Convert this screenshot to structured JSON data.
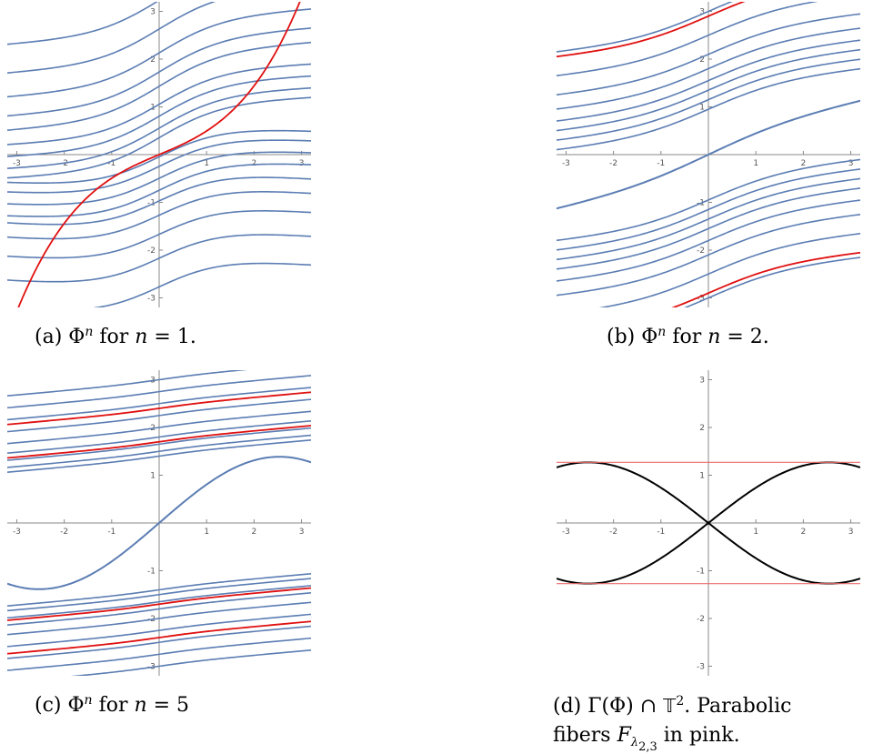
{
  "figure": {
    "panels": [
      {
        "id": "a",
        "caption_label": "(a)",
        "caption_text": "Φ",
        "caption_sup": "n",
        "caption_after": " for ",
        "caption_var": "n",
        "caption_value": " = 1."
      },
      {
        "id": "b",
        "caption_label": "(b)",
        "caption_text": "Φ",
        "caption_sup": "n",
        "caption_after": " for ",
        "caption_var": "n",
        "caption_value": " = 2."
      },
      {
        "id": "c",
        "caption_label": "(c)",
        "caption_text": "Φ",
        "caption_sup": "n",
        "caption_after": " for ",
        "caption_var": "n",
        "caption_value": " = 5"
      },
      {
        "id": "d",
        "caption_label": "(d)",
        "caption_line1_a": "Γ(Φ) ∩ ",
        "caption_line1_T": "𝕋",
        "caption_line1_sup": "2",
        "caption_line1_b": ".  Parabolic",
        "caption_line2_a": "fibers ",
        "caption_line2_F": "F",
        "caption_line2_sub": "λ",
        "caption_line2_subsub": "2,3",
        "caption_line2_b": " in pink."
      }
    ]
  },
  "chart_data": [
    {
      "type": "line",
      "panel": "a",
      "xlim": [
        -3.2,
        3.2
      ],
      "ylim": [
        -3.2,
        3.2
      ],
      "x_ticks": [
        -3,
        -2,
        -1,
        1,
        2,
        3
      ],
      "y_ticks": [
        -3,
        -2,
        -1,
        1,
        2,
        3
      ],
      "tick_labels_x": [
        "-3",
        "-2",
        "-1",
        "1",
        "2",
        "3"
      ],
      "tick_labels_y": [
        "-3",
        "-2",
        "-1",
        "1",
        "2",
        "3"
      ],
      "colors": {
        "family": "#5b7db3",
        "highlight": "#e01010"
      },
      "family_offsets": [
        -3.0,
        -2.4,
        -1.9,
        -1.5,
        -1.2,
        -0.9,
        -0.65,
        -0.4,
        -0.2,
        0.2,
        0.4,
        0.65,
        0.9,
        1.2,
        1.5,
        1.9,
        2.4,
        3.0
      ],
      "highlight_offsets": [
        0
      ]
    },
    {
      "type": "line",
      "panel": "b",
      "xlim": [
        -3.2,
        3.2
      ],
      "ylim": [
        -3.2,
        3.2
      ],
      "x_ticks": [
        -3,
        -2,
        -1,
        1,
        2,
        3
      ],
      "y_ticks": [
        -3,
        -2,
        -1,
        1,
        2,
        3
      ],
      "tick_labels_x": [
        "-3",
        "-2",
        "-1",
        "1",
        "2",
        "3"
      ],
      "tick_labels_y": [
        "-3",
        "-2",
        "-1",
        "1",
        "2",
        "3"
      ],
      "colors": {
        "family": "#5b7db3",
        "highlight": "#e01010"
      },
      "family_offsets": [
        -3.0,
        -2.5,
        -2.1,
        -1.8,
        -1.55,
        -1.35,
        -1.15,
        -0.95,
        0.95,
        1.15,
        1.35,
        1.55,
        1.8,
        2.1,
        2.5,
        3.0
      ],
      "highlight_offsets": [
        -2.9,
        2.9
      ]
    },
    {
      "type": "line",
      "panel": "c",
      "xlim": [
        -3.2,
        3.2
      ],
      "ylim": [
        -3.2,
        3.2
      ],
      "x_ticks": [
        -3,
        -2,
        -1,
        1,
        2,
        3
      ],
      "y_ticks": [
        -3,
        -2,
        -1,
        1,
        2,
        3
      ],
      "tick_labels_x": [
        "-3",
        "-2",
        "-1",
        "1",
        "2",
        "3"
      ],
      "tick_labels_y": [
        "-3",
        "-2",
        "-1",
        "1",
        "2",
        "3"
      ],
      "colors": {
        "family": "#5b7db3",
        "highlight": "#e01010"
      },
      "family_offsets": [
        -3.0,
        -2.75,
        -2.5,
        -2.25,
        -2.0,
        -1.8,
        -1.65,
        -1.5,
        -1.4,
        1.4,
        1.5,
        1.65,
        1.8,
        2.0,
        2.25,
        2.5,
        2.75,
        3.0
      ],
      "highlight_offsets": [
        -2.4,
        -1.7,
        1.7,
        2.4
      ]
    },
    {
      "type": "line",
      "panel": "d",
      "xlim": [
        -3.2,
        3.2
      ],
      "ylim": [
        -3.2,
        3.2
      ],
      "x_ticks": [
        -3,
        -2,
        -1,
        1,
        2,
        3
      ],
      "y_ticks": [
        -3,
        -2,
        -1,
        1,
        2,
        3
      ],
      "tick_labels_x": [
        "-3",
        "-2",
        "-1",
        "1",
        "2",
        "3"
      ],
      "tick_labels_y": [
        "-3",
        "-2",
        "-1",
        "1",
        "2",
        "3"
      ],
      "colors": {
        "curve": "#000000",
        "fiber": "#ee6b6b"
      },
      "fiber_levels": [
        1.27,
        -1.27
      ]
    }
  ]
}
